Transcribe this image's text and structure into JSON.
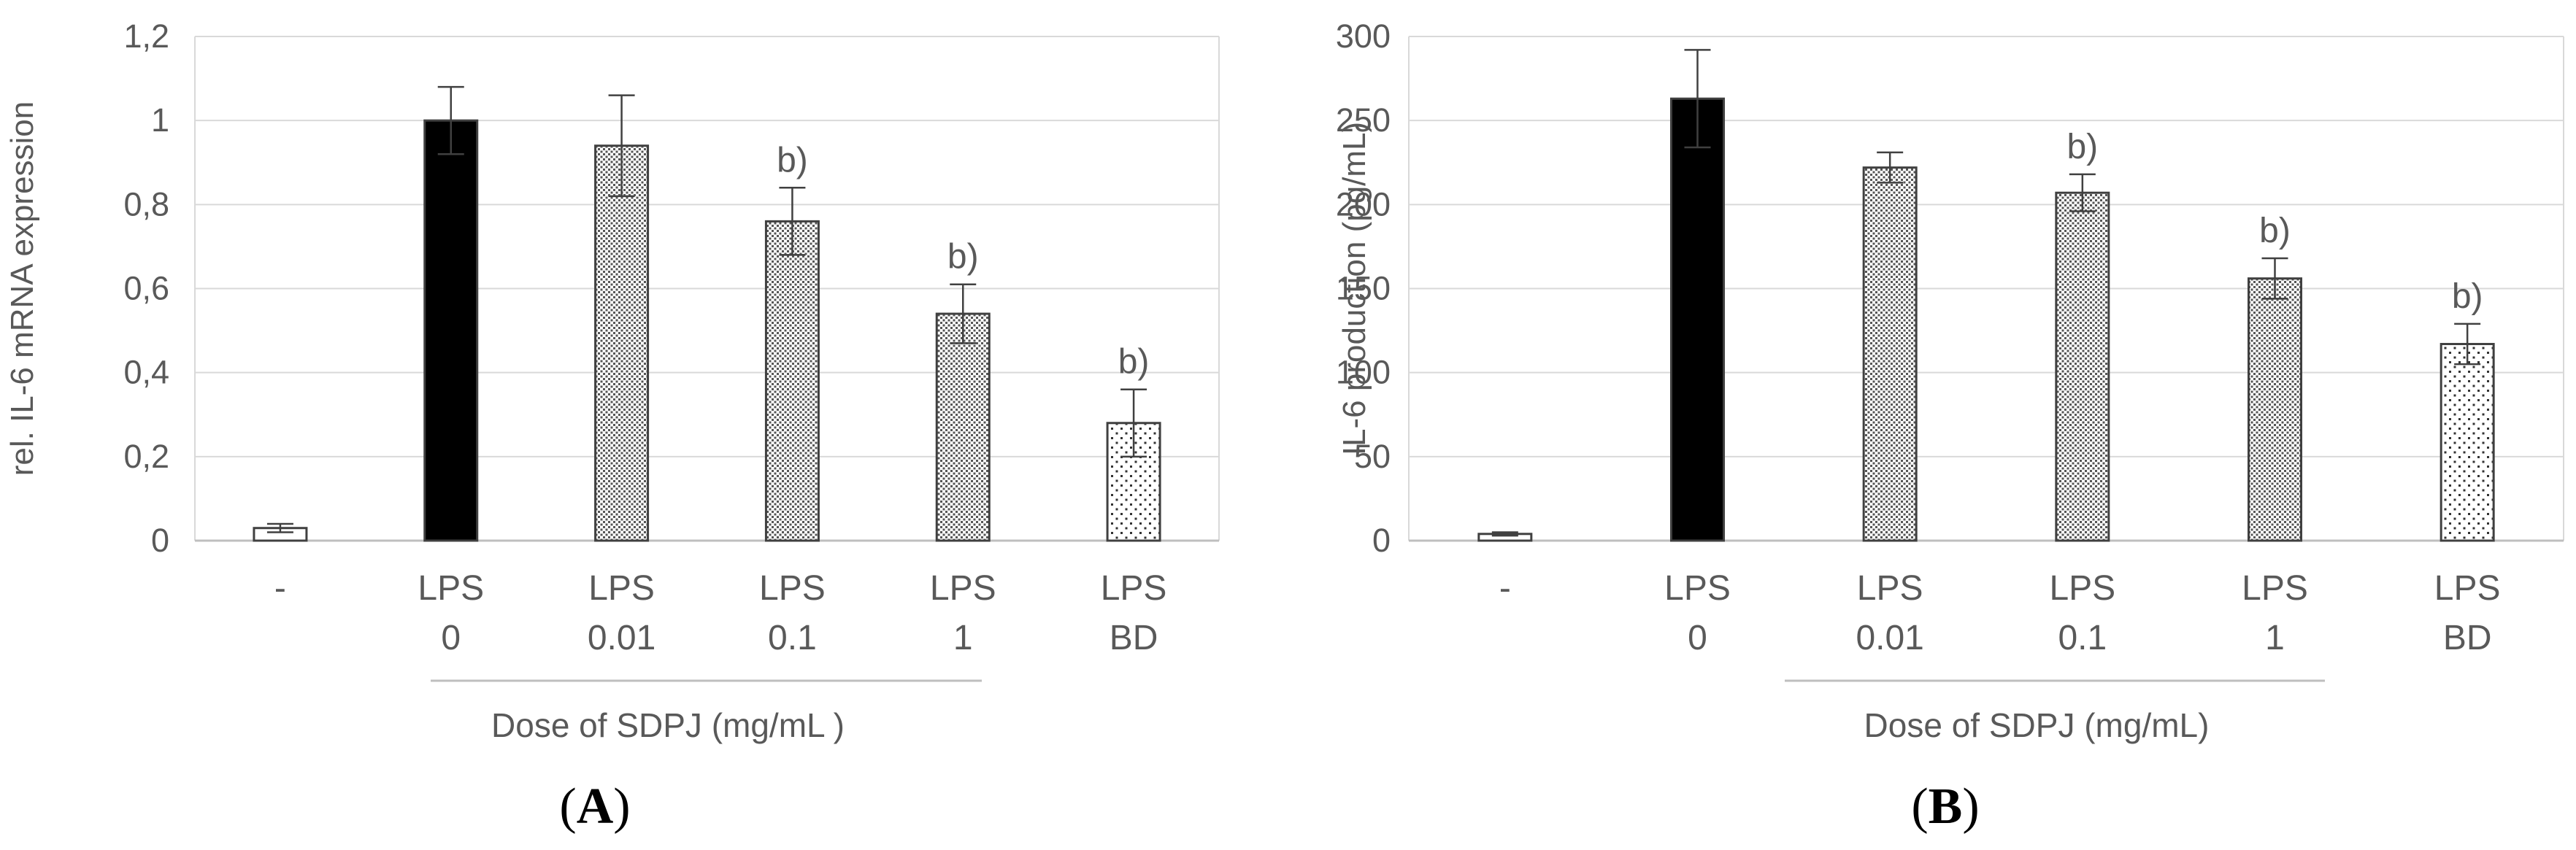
{
  "panels": [
    {
      "panel_label": "A",
      "sig_color": "#000000"
    },
    {
      "panel_label": "B",
      "sig_color": "#000000"
    }
  ],
  "chart_data": [
    {
      "type": "bar",
      "panel": "A",
      "categories": [
        [
          "-"
        ],
        [
          "LPS",
          "0"
        ],
        [
          "LPS",
          "0.01"
        ],
        [
          "LPS",
          "0.1"
        ],
        [
          "LPS",
          "1"
        ],
        [
          "LPS",
          "BD"
        ]
      ],
      "values": [
        0.03,
        1.0,
        0.94,
        0.76,
        0.54,
        0.28
      ],
      "errors": [
        0.01,
        0.08,
        0.12,
        0.08,
        0.07,
        0.08
      ],
      "annotations": [
        "",
        "",
        "",
        "b)",
        "b)",
        "b)"
      ],
      "fills": [
        "white",
        "black",
        "dense-dots",
        "dense-dots",
        "dense-dots",
        "sparse-dots"
      ],
      "ylabel": "rel. IL-6 mRNA  expression",
      "xlabel": "Dose of SDPJ (mg/mL  )",
      "ylim": [
        0,
        1.2
      ],
      "yticks": [
        "0",
        "0,2",
        "0,4",
        "0,6",
        "0,8",
        "1",
        "1,2"
      ],
      "grid": true,
      "colors": {
        "axis": "#bfbfbf",
        "grid": "#d9d9d9",
        "text": "#595959",
        "bar_outline": "#404040",
        "error": "#404040"
      }
    },
    {
      "type": "bar",
      "panel": "B",
      "categories": [
        [
          "-"
        ],
        [
          "LPS",
          "0"
        ],
        [
          "LPS",
          "0.01"
        ],
        [
          "LPS",
          "0.1"
        ],
        [
          "LPS",
          "1"
        ],
        [
          "LPS",
          "BD"
        ]
      ],
      "values": [
        4,
        263,
        222,
        207,
        156,
        117
      ],
      "errors": [
        1,
        29,
        9,
        11,
        12,
        12
      ],
      "annotations": [
        "",
        "",
        "",
        "b)",
        "b)",
        "b)"
      ],
      "fills": [
        "white",
        "black",
        "dense-dots",
        "dense-dots",
        "dense-dots",
        "sparse-dots"
      ],
      "ylabel": "IL-6 production  (pg/mL)",
      "xlabel": "Dose of SDPJ (mg/mL)",
      "ylim": [
        0,
        300
      ],
      "yticks": [
        "0",
        "50",
        "100",
        "150",
        "200",
        "250",
        "300"
      ],
      "grid": true,
      "colors": {
        "axis": "#bfbfbf",
        "grid": "#d9d9d9",
        "text": "#595959",
        "bar_outline": "#404040",
        "error": "#404040"
      }
    }
  ]
}
